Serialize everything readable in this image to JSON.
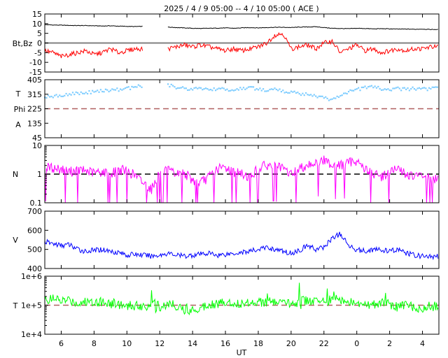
{
  "chart_data": {
    "type": "line",
    "title": "2025 /  4 /  9   05:00 --  4 / 10   05:00 ( ACE )",
    "xlabel": "UT",
    "x_range_hours_from_start": [
      0,
      24
    ],
    "x_step_hours": 0.5,
    "x_ticks": [
      {
        "h": 1,
        "label": "6"
      },
      {
        "h": 3,
        "label": "8"
      },
      {
        "h": 5,
        "label": "10"
      },
      {
        "h": 7,
        "label": "12"
      },
      {
        "h": 9,
        "label": "14"
      },
      {
        "h": 11,
        "label": "16"
      },
      {
        "h": 13,
        "label": "18"
      },
      {
        "h": 15,
        "label": "20"
      },
      {
        "h": 17,
        "label": "22"
      },
      {
        "h": 19,
        "label": "0"
      },
      {
        "h": 21,
        "label": "2"
      },
      {
        "h": 23,
        "label": "4"
      }
    ],
    "panels": [
      {
        "id": "mag",
        "ylabels": [
          "Bt,Bz"
        ],
        "ylim": [
          -15,
          15
        ],
        "log": false,
        "yticks": [
          "15",
          "10",
          "5",
          "0",
          "-5",
          "-10",
          "-15"
        ],
        "ytick_values": [
          15,
          10,
          5,
          0,
          -5,
          -10,
          -15
        ],
        "ref": 0,
        "ref_color": "#808080",
        "ref_dash": false,
        "series": [
          {
            "name": "Bt",
            "color": "#000000",
            "values": [
              9.5,
              9.3,
              9.2,
              9.1,
              9.0,
              9.0,
              8.9,
              8.8,
              8.9,
              8.7,
              8.6,
              8.5,
              8.6,
              null,
              null,
              8.2,
              8.0,
              7.8,
              7.6,
              7.5,
              7.6,
              7.7,
              7.8,
              7.6,
              7.8,
              8.0,
              7.8,
              8.0,
              8.1,
              8.1,
              8.0,
              8.2,
              8.3,
              8.4,
              8.0,
              7.6,
              7.5,
              7.4,
              7.6,
              7.5,
              7.3,
              7.4,
              7.3,
              7.2,
              7.2,
              7.1,
              7.2,
              7.0,
              7.0
            ]
          },
          {
            "name": "Bz",
            "color": "#ff0000",
            "values": [
              -4,
              -5,
              -7,
              -6,
              -5,
              -4,
              -6,
              -5,
              -3,
              -5,
              -4,
              -3,
              -3,
              null,
              null,
              -3,
              -2,
              -1,
              -2,
              -1,
              -2,
              -3,
              -4,
              -3,
              -4,
              -3,
              -2,
              0,
              4,
              5,
              -3,
              -2,
              -1,
              -3,
              0,
              1,
              -5,
              -3,
              -1,
              -4,
              -3,
              -5,
              -4,
              -3,
              -4,
              -3,
              -3,
              -2,
              -2
            ]
          }
        ]
      },
      {
        "id": "phi",
        "ylabels": [
          "T",
          "Phi",
          "A"
        ],
        "ylim": [
          45,
          405
        ],
        "log": false,
        "yticks": [
          "405",
          "315",
          "225",
          "135",
          "45"
        ],
        "ytick_values": [
          405,
          315,
          225,
          135,
          45
        ],
        "ref": 225,
        "ref_color": "#b06060",
        "ref_dash": true,
        "series": [
          {
            "name": "Phi",
            "color": "#7fcdff",
            "dots": true,
            "values": [
              300,
              305,
              310,
              318,
              320,
              325,
              330,
              335,
              340,
              345,
              350,
              360,
              370,
              null,
              null,
              370,
              360,
              350,
              345,
              355,
              340,
              350,
              345,
              340,
              350,
              355,
              350,
              340,
              345,
              335,
              330,
              320,
              315,
              300,
              290,
              285,
              300,
              330,
              345,
              355,
              360,
              350,
              345,
              350,
              345,
              350,
              345,
              350,
              350
            ]
          }
        ]
      },
      {
        "id": "density",
        "ylabels": [
          "N"
        ],
        "ylim": [
          0.1,
          10
        ],
        "log": true,
        "yticks": [
          "10",
          "1",
          "0.1"
        ],
        "ytick_values": [
          10,
          1,
          0.1
        ],
        "ref": 1,
        "ref_color": "#000000",
        "ref_dash": true,
        "series": [
          {
            "name": "N",
            "color": "#ff00ff",
            "values": [
              1.8,
              1.6,
              1.5,
              1.2,
              1.4,
              1.3,
              1.1,
              1.2,
              1.0,
              1.4,
              1.3,
              0.9,
              0.5,
              0.3,
              1.2,
              1.3,
              1.0,
              1.1,
              0.6,
              0.5,
              0.8,
              1.5,
              1.7,
              1.2,
              1.0,
              0.8,
              1.6,
              2.0,
              1.8,
              1.5,
              1.0,
              1.5,
              2.2,
              2.5,
              3.0,
              2.2,
              2.0,
              2.5,
              3.0,
              1.5,
              1.0,
              0.8,
              1.2,
              1.5,
              1.0,
              0.8,
              0.9,
              0.7,
              0.6
            ]
          }
        ]
      },
      {
        "id": "speed",
        "ylabels": [
          "V"
        ],
        "ylim": [
          400,
          700
        ],
        "log": false,
        "yticks": [
          "700",
          "600",
          "500",
          "400"
        ],
        "ytick_values": [
          700,
          600,
          500,
          400
        ],
        "ref": null,
        "series": [
          {
            "name": "V",
            "color": "#0000ff",
            "values": [
              540,
              530,
              520,
              525,
              500,
              490,
              495,
              500,
              490,
              485,
              470,
              475,
              470,
              465,
              470,
              480,
              470,
              465,
              470,
              475,
              480,
              470,
              475,
              480,
              485,
              490,
              500,
              510,
              500,
              490,
              480,
              495,
              520,
              500,
              510,
              560,
              580,
              520,
              500,
              490,
              500,
              495,
              490,
              500,
              480,
              470,
              465,
              460,
              465
            ]
          }
        ]
      },
      {
        "id": "temp",
        "ylabels": [
          "T"
        ],
        "ylim": [
          10000,
          1000000
        ],
        "log": true,
        "yticks": [
          "1e+6",
          "1e+5",
          "1e+4"
        ],
        "ytick_values": [
          1000000,
          100000,
          10000
        ],
        "ref": 100000,
        "ref_color": "#b06060",
        "ref_dash": true,
        "series": [
          {
            "name": "T",
            "color": "#00ff00",
            "values": [
              150000,
              160000,
              140000,
              150000,
              120000,
              130000,
              140000,
              130000,
              120000,
              110000,
              90000,
              100000,
              95000,
              100000,
              90000,
              110000,
              100000,
              75000,
              70000,
              80000,
              120000,
              110000,
              130000,
              120000,
              110000,
              130000,
              140000,
              120000,
              130000,
              110000,
              120000,
              130000,
              150000,
              130000,
              140000,
              150000,
              160000,
              120000,
              110000,
              100000,
              110000,
              130000,
              100000,
              90000,
              100000,
              90000,
              80000,
              90000,
              100000
            ]
          }
        ]
      }
    ]
  }
}
